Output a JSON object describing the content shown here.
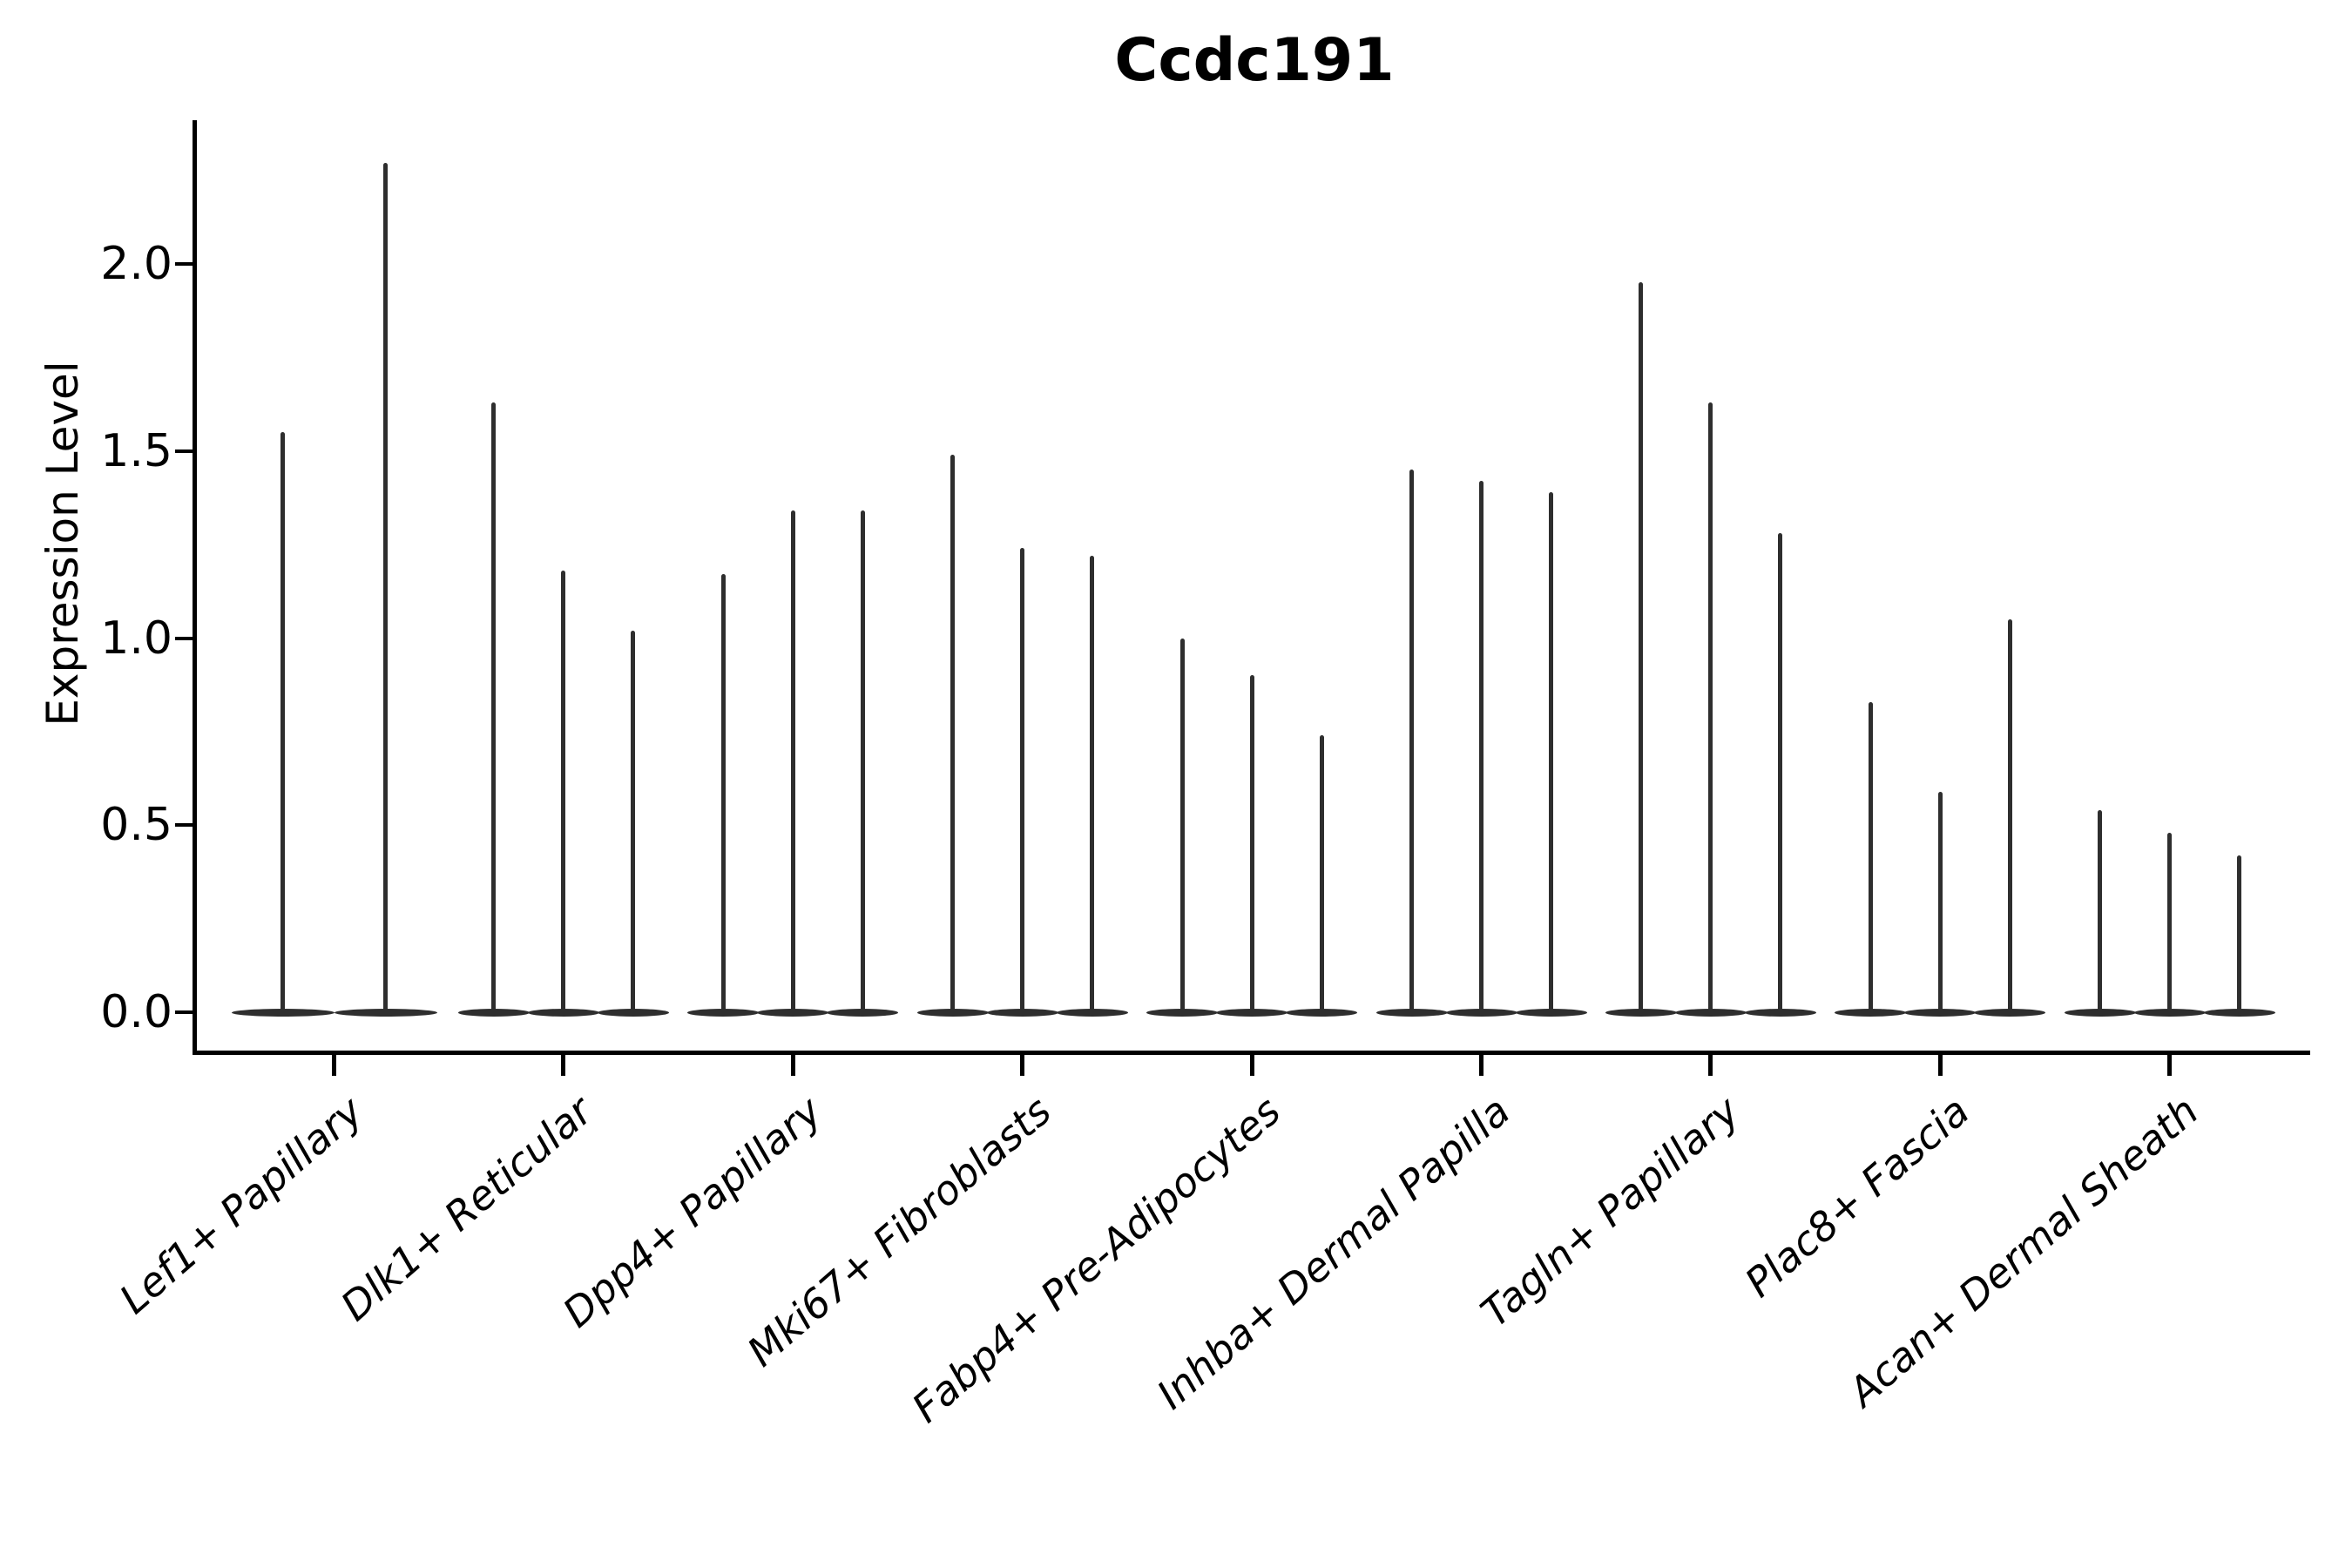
{
  "chart_data": {
    "type": "violin",
    "title": "Ccdc191",
    "xlabel": "",
    "ylabel": "Expression Level",
    "ytick_labels": [
      "0.0",
      "0.5",
      "1.0",
      "1.5",
      "2.0"
    ],
    "ytick_values": [
      0.0,
      0.5,
      1.0,
      1.5,
      2.0
    ],
    "ylim": [
      -0.11,
      2.38
    ],
    "grid": false,
    "legend": "none",
    "violin_style": "thin spikes with flattened base at zero (sparse expression)",
    "categories": [
      "Lef1+ Papillary",
      "Dlk1+ Reticular",
      "Dpp4+ Papillary",
      "Mki67+ Fibroblasts",
      "Fabp4+ Pre-Adipocytes",
      "Inhba+ Dermal Papilla",
      "Tagln+ Papillary",
      "Plac8+ Fascia",
      "Acan+ Dermal Sheath"
    ],
    "groups": [
      {
        "label": "Lef1+ Papillary",
        "violins_per_group": 2,
        "max_expression": [
          1.55,
          2.27
        ]
      },
      {
        "label": "Dlk1+ Reticular",
        "violins_per_group": 3,
        "max_expression": [
          1.63,
          1.18,
          1.02
        ]
      },
      {
        "label": "Dpp4+ Papillary",
        "violins_per_group": 3,
        "max_expression": [
          1.17,
          1.34,
          1.34
        ]
      },
      {
        "label": "Mki67+ Fibroblasts",
        "violins_per_group": 3,
        "max_expression": [
          1.49,
          1.24,
          1.22
        ]
      },
      {
        "label": "Fabp4+ Pre-Adipocytes",
        "violins_per_group": 3,
        "max_expression": [
          1.0,
          0.9,
          0.74
        ]
      },
      {
        "label": "Inhba+ Dermal Papilla",
        "violins_per_group": 3,
        "max_expression": [
          1.45,
          1.42,
          1.39
        ]
      },
      {
        "label": "Tagln+ Papillary",
        "violins_per_group": 3,
        "max_expression": [
          1.95,
          1.63,
          1.28
        ]
      },
      {
        "label": "Plac8+ Fascia",
        "violins_per_group": 3,
        "max_expression": [
          0.83,
          0.59,
          1.05
        ]
      },
      {
        "label": "Acan+ Dermal Sheath",
        "violins_per_group": 3,
        "max_expression": [
          0.54,
          0.48,
          0.42
        ]
      }
    ],
    "colors": {
      "violin": "#2e2e2e",
      "axis": "#000000",
      "text": "#000000",
      "background": "#ffffff"
    }
  }
}
